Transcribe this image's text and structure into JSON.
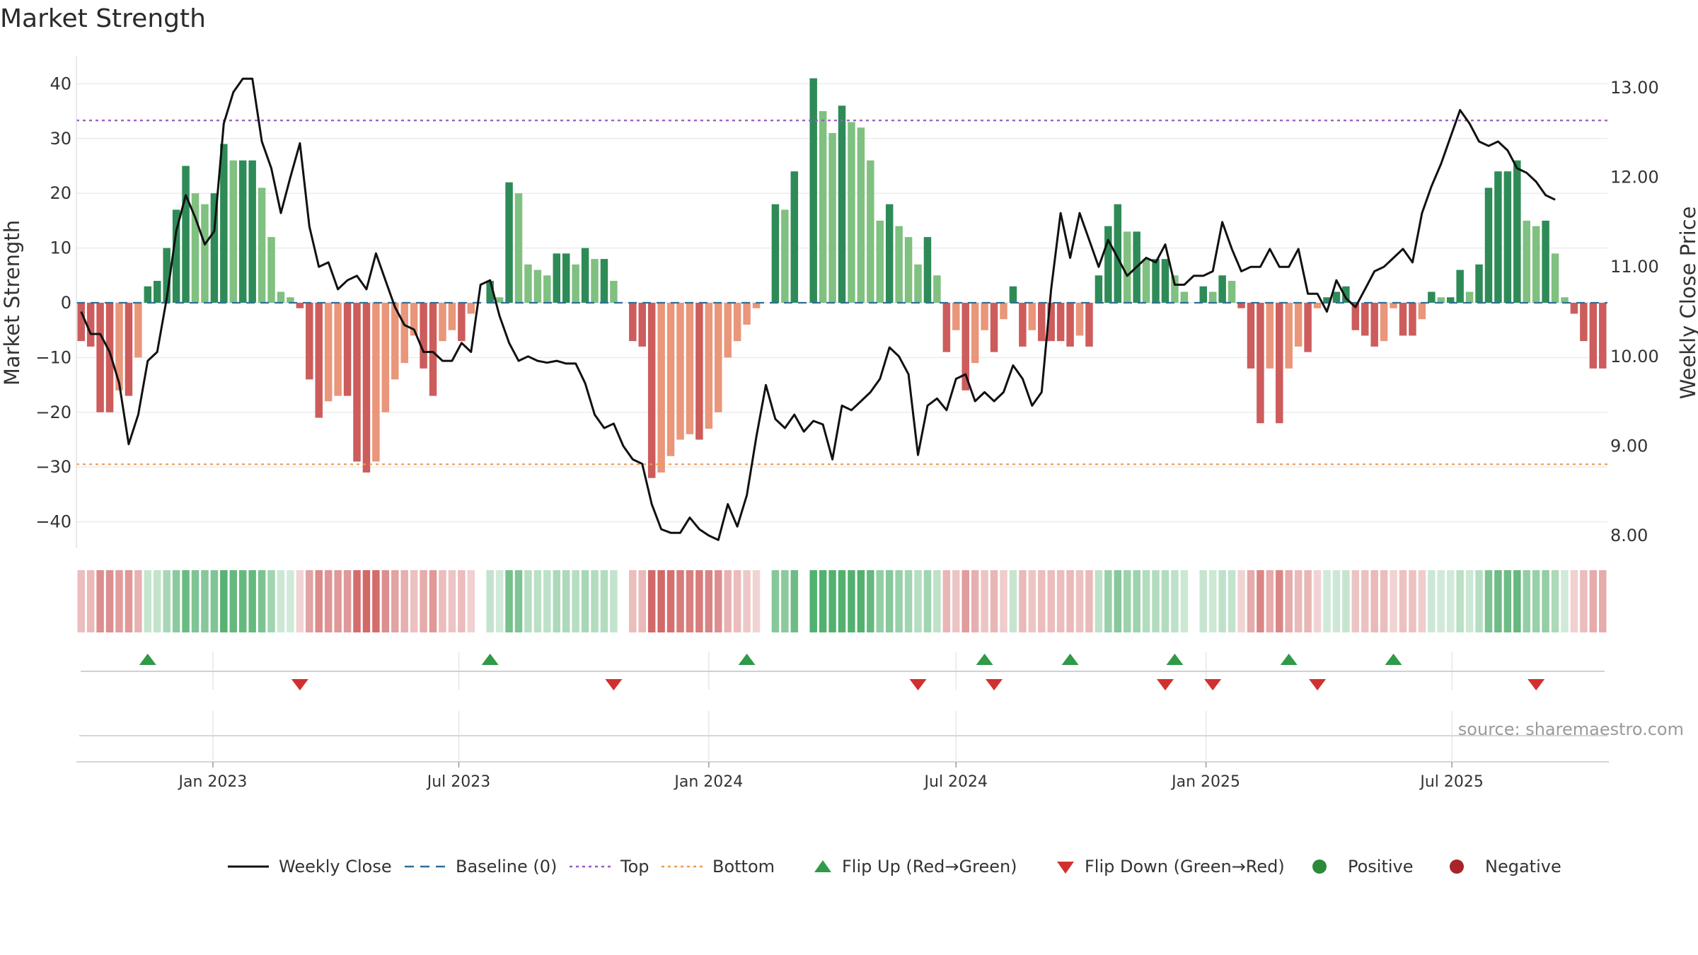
{
  "chart_data": {
    "type": "bar",
    "title": "Market Strength",
    "ylabel": "Market Strength",
    "y2label": "Weekly Close Price",
    "ylim": [
      -45,
      45
    ],
    "y2lim": [
      7.85,
      13.35
    ],
    "yticks": [
      -40,
      -30,
      -20,
      -10,
      0,
      10,
      20,
      30,
      40
    ],
    "y2ticks": [
      "8.00",
      "9.00",
      "10.00",
      "11.00",
      "12.00",
      "13.00"
    ],
    "top_level": 33.3,
    "bottom_level": -29.5,
    "baseline": 0,
    "start_date": "2022-09-26",
    "x_ticks": [
      {
        "label": "Jan 2023",
        "date": "2023-01-01"
      },
      {
        "label": "Jul 2023",
        "date": "2023-07-01"
      },
      {
        "label": "Jan 2024",
        "date": "2024-01-01"
      },
      {
        "label": "Jul 2024",
        "date": "2024-07-01"
      },
      {
        "label": "Jan 2025",
        "date": "2025-01-01"
      },
      {
        "label": "Jul 2025",
        "date": "2025-07-01"
      }
    ],
    "strength": [
      -7,
      -8,
      -20,
      -20,
      -16,
      -17,
      -10,
      3,
      4,
      10,
      17,
      25,
      20,
      18,
      20,
      29,
      26,
      26,
      26,
      21,
      12,
      2,
      1,
      -1,
      -14,
      -21,
      -18,
      -17,
      -17,
      -29,
      -31,
      -29,
      -20,
      -14,
      -11,
      -6,
      -12,
      -17,
      -7,
      -5,
      -7,
      -2,
      0,
      4,
      1,
      22,
      20,
      7,
      6,
      5,
      9,
      9,
      7,
      10,
      8,
      8,
      4,
      0,
      -7,
      -8,
      -32,
      -31,
      -28,
      -25,
      -24,
      -25,
      -23,
      -20,
      -10,
      -7,
      -4,
      -1,
      0,
      18,
      17,
      24,
      0,
      41,
      35,
      31,
      36,
      33,
      32,
      26,
      15,
      18,
      14,
      12,
      7,
      12,
      5,
      -9,
      -5,
      -16,
      -11,
      -5,
      -9,
      -3,
      3,
      -8,
      -5,
      -7,
      -7,
      -7,
      -8,
      -6,
      -8,
      5,
      14,
      18,
      13,
      13,
      8,
      8,
      8,
      5,
      2,
      0,
      3,
      2,
      5,
      4,
      -1,
      -12,
      -22,
      -12,
      -22,
      -12,
      -8,
      -9,
      -1,
      1,
      2,
      3,
      -5,
      -6,
      -8,
      -7,
      -1,
      -6,
      -6,
      -3,
      2,
      1,
      1,
      6,
      2,
      7,
      21,
      24,
      24,
      26,
      15,
      14,
      15,
      9,
      1,
      -2,
      -7,
      -12,
      -12
    ],
    "close": [
      10.5,
      10.25,
      10.25,
      10.05,
      9.7,
      9.02,
      9.35,
      9.95,
      10.05,
      10.65,
      11.4,
      11.8,
      11.55,
      11.25,
      11.4,
      12.6,
      12.95,
      13.1,
      13.1,
      12.4,
      12.1,
      11.6,
      12.0,
      12.38,
      11.45,
      11.0,
      11.05,
      10.75,
      10.85,
      10.9,
      10.75,
      11.15,
      10.85,
      10.55,
      10.35,
      10.3,
      10.05,
      10.05,
      9.95,
      9.95,
      10.15,
      10.05,
      10.8,
      10.85,
      10.45,
      10.15,
      9.95,
      10.0,
      9.95,
      9.93,
      9.95,
      9.92,
      9.92,
      9.7,
      9.35,
      9.2,
      9.25,
      9.0,
      8.85,
      8.8,
      8.35,
      8.07,
      8.03,
      8.03,
      8.2,
      8.07,
      8.0,
      7.95,
      8.35,
      8.1,
      8.45,
      9.1,
      9.68,
      9.3,
      9.2,
      9.35,
      9.16,
      9.28,
      9.24,
      8.85,
      9.45,
      9.4,
      9.5,
      9.6,
      9.75,
      10.1,
      10.0,
      9.8,
      8.9,
      9.45,
      9.53,
      9.4,
      9.75,
      9.8,
      9.5,
      9.6,
      9.5,
      9.6,
      9.9,
      9.75,
      9.45,
      9.6,
      10.75,
      11.6,
      11.1,
      11.6,
      11.3,
      11.0,
      11.3,
      11.1,
      10.9,
      11.0,
      11.1,
      11.05,
      11.25,
      10.8,
      10.8,
      10.9,
      10.9,
      10.95,
      11.5,
      11.2,
      10.95,
      11.0,
      11.0,
      11.2,
      11.0,
      11.0,
      11.2,
      10.7,
      10.7,
      10.5,
      10.85,
      10.65,
      10.55,
      10.75,
      10.95,
      11.0,
      11.1,
      11.2,
      11.05,
      11.6,
      11.9,
      12.15,
      12.45,
      12.75,
      12.6,
      12.4,
      12.35,
      12.4,
      12.3,
      12.1,
      12.05,
      11.95,
      11.8,
      11.75
    ],
    "flip_up_weeks": [
      7,
      43,
      70,
      95,
      104,
      115,
      127,
      138
    ],
    "flip_down_weeks": [
      23,
      56,
      88,
      96,
      114,
      119,
      130,
      153
    ],
    "source": "source: sharemaestro.com",
    "legend": [
      {
        "label": "Weekly Close",
        "kind": "line-solid",
        "color": "#111111"
      },
      {
        "label": "Baseline (0)",
        "kind": "line-dash",
        "color": "#2f6f99"
      },
      {
        "label": "Top",
        "kind": "line-dot",
        "color": "#9a59c4"
      },
      {
        "label": "Bottom",
        "kind": "line-dot",
        "color": "#eb9c4e"
      },
      {
        "label": "Flip Up (Red→Green)",
        "kind": "tri-up",
        "color": "#2f9a47"
      },
      {
        "label": "Flip Down (Green→Red)",
        "kind": "tri-down",
        "color": "#d13030"
      },
      {
        "label": "Positive",
        "kind": "dot",
        "color": "#2a8a3a"
      },
      {
        "label": "Negative",
        "kind": "dot",
        "color": "#a8232a"
      }
    ],
    "colors": {
      "pos_dark": "#2e8b57",
      "pos_light": "#80c080",
      "neg_dark": "#cd5c5c",
      "neg_light": "#e9967a",
      "top": "#9a59c4",
      "bottom": "#eb9c4e",
      "baseline": "#2f6f99",
      "close": "#111111",
      "flip_up": "#2f9a47",
      "flip_down": "#d13030"
    }
  }
}
